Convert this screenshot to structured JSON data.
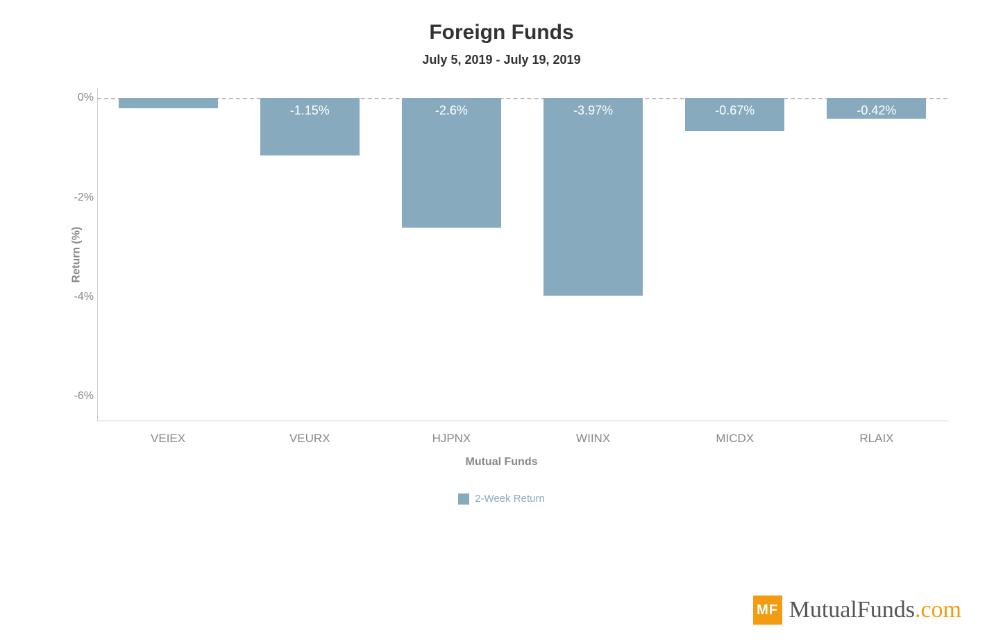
{
  "chart": {
    "type": "bar",
    "title": "Foreign Funds",
    "subtitle": "July 5, 2019 - July 19, 2019",
    "ylabel": "Return (%)",
    "xlabel": "Mutual Funds",
    "title_fontsize": 30,
    "subtitle_fontsize": 18,
    "label_fontsize": 16,
    "tick_fontsize": 16,
    "bar_label_fontsize": 18,
    "title_color": "#333333",
    "label_color": "#888888",
    "tick_color": "#888888",
    "background_color": "#ffffff",
    "grid_color": "#bbbbbb",
    "axis_line_color": "#cccccc",
    "ylim": [
      -6.5,
      0.2
    ],
    "yticks": [
      0,
      -2,
      -4,
      -6
    ],
    "ytick_labels": [
      "0%",
      "-2%",
      "-4%",
      "-6%"
    ],
    "zero_line_style": "dashed",
    "bar_width": 0.7,
    "categories": [
      "VEIEX",
      "VEURX",
      "HJPNX",
      "WIINX",
      "MICDX",
      "RLAIX"
    ],
    "values": [
      -0.2,
      -1.15,
      -2.6,
      -3.97,
      -0.67,
      -0.42
    ],
    "value_labels": [
      "",
      "-1.15%",
      "-2.6%",
      "-3.97%",
      "-0.67%",
      "-0.42%"
    ],
    "bar_color": "#87aabe",
    "bar_label_color": "#ffffff",
    "legend": {
      "label": "2-Week Return",
      "swatch_color": "#87aabe",
      "text_color": "#87aabe",
      "fontsize": 15
    }
  },
  "logo": {
    "badge_text": "MF",
    "badge_bg": "#f39c12",
    "badge_fg": "#ffffff",
    "text_main": "MutualFunds",
    "text_suffix": ".com",
    "main_color": "#555555",
    "suffix_color": "#f39c12",
    "fontsize": 34
  }
}
